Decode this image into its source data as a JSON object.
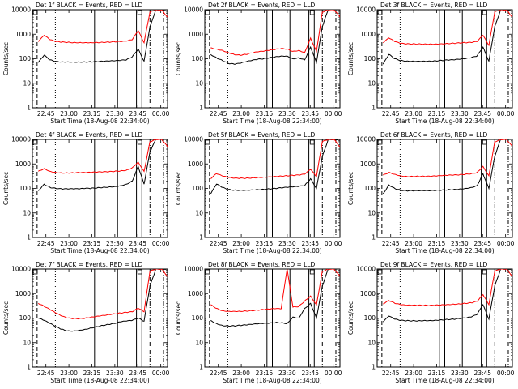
{
  "chart_data": [
    {
      "type": "line",
      "title": "Det 1f BLACK = Events, RED = LLD",
      "xlabel": "Start Time (18-Aug-08 22:34:00)",
      "ylabel": "Counts/sec",
      "x_ticks": [
        "22:45",
        "23:00",
        "23:15",
        "23:30",
        "23:45",
        "00:00"
      ],
      "y_ticks": [
        "1",
        "10",
        "100",
        "1000",
        "10000"
      ],
      "yscale": "log",
      "ylim": [
        1,
        10000
      ],
      "series": [
        {
          "color": "#000000",
          "values": [
            null,
            70,
            140,
            90,
            78,
            75,
            75,
            74,
            74,
            74,
            75,
            76,
            78,
            80,
            82,
            85,
            90,
            120,
            250,
            80,
            2000,
            10000,
            10000,
            10000
          ]
        },
        {
          "color": "#ff0000",
          "values": [
            null,
            500,
            900,
            600,
            500,
            480,
            470,
            460,
            460,
            460,
            460,
            465,
            470,
            480,
            490,
            500,
            520,
            600,
            1400,
            450,
            8000,
            10000,
            10000,
            5000
          ]
        }
      ]
    },
    {
      "type": "line",
      "title": "Det 2f BLACK = Events, RED = LLD",
      "xlabel": "Start Time (18-Aug-08 22:34:00)",
      "ylabel": "Counts/sec",
      "x_ticks": [
        "22:45",
        "23:00",
        "23:15",
        "23:30",
        "23:45",
        "00:00"
      ],
      "y_ticks": [
        "1",
        "10",
        "100",
        "1000",
        "10000"
      ],
      "yscale": "log",
      "ylim": [
        1,
        10000
      ],
      "series": [
        {
          "color": "#000000",
          "values": [
            null,
            150,
            110,
            85,
            65,
            60,
            65,
            75,
            85,
            95,
            100,
            110,
            120,
            130,
            130,
            100,
            110,
            90,
            300,
            70,
            2000,
            10000,
            10000,
            10000
          ]
        },
        {
          "color": "#ff0000",
          "values": [
            null,
            280,
            250,
            220,
            180,
            150,
            140,
            150,
            170,
            190,
            200,
            220,
            240,
            260,
            250,
            200,
            220,
            180,
            700,
            200,
            8000,
            10000,
            10000,
            5000
          ]
        }
      ]
    },
    {
      "type": "line",
      "title": "Det 3f BLACK = Events, RED = LLD",
      "xlabel": "Start Time (18-Aug-08 22:34:00)",
      "ylabel": "Counts/sec",
      "x_ticks": [
        "22:45",
        "23:00",
        "23:15",
        "23:30",
        "23:45",
        "00:00"
      ],
      "y_ticks": [
        "1",
        "10",
        "100",
        "1000",
        "10000"
      ],
      "yscale": "log",
      "ylim": [
        1,
        10000
      ],
      "series": [
        {
          "color": "#000000",
          "values": [
            null,
            60,
            150,
            100,
            85,
            80,
            80,
            80,
            80,
            80,
            82,
            85,
            88,
            90,
            95,
            100,
            110,
            130,
            300,
            80,
            2000,
            10000,
            10000,
            10000
          ]
        },
        {
          "color": "#ff0000",
          "values": [
            null,
            450,
            700,
            500,
            420,
            400,
            400,
            400,
            400,
            400,
            400,
            410,
            420,
            430,
            440,
            450,
            460,
            500,
            900,
            350,
            8000,
            10000,
            10000,
            5000
          ]
        }
      ]
    },
    {
      "type": "line",
      "title": "Det 4f BLACK = Events, RED = LLD",
      "xlabel": "Start Time (18-Aug-08 22:34:00)",
      "ylabel": "Counts/sec",
      "x_ticks": [
        "22:45",
        "23:00",
        "23:15",
        "23:30",
        "23:45",
        "00:00"
      ],
      "y_ticks": [
        "1",
        "10",
        "100",
        "1000",
        "10000"
      ],
      "yscale": "log",
      "ylim": [
        1,
        10000
      ],
      "series": [
        {
          "color": "#000000",
          "values": [
            null,
            80,
            150,
            110,
            100,
            95,
            95,
            95,
            95,
            100,
            100,
            105,
            110,
            115,
            120,
            130,
            150,
            200,
            800,
            150,
            3000,
            10000,
            10000,
            10000
          ]
        },
        {
          "color": "#ff0000",
          "values": [
            null,
            500,
            650,
            500,
            450,
            430,
            430,
            430,
            440,
            440,
            450,
            460,
            470,
            480,
            500,
            520,
            560,
            700,
            1200,
            500,
            8000,
            10000,
            10000,
            5000
          ]
        }
      ]
    },
    {
      "type": "line",
      "title": "Det 5f BLACK = Events, RED = LLD",
      "xlabel": "Start Time (18-Aug-08 22:34:00)",
      "ylabel": "Counts/sec",
      "x_ticks": [
        "22:45",
        "23:00",
        "23:15",
        "23:30",
        "23:45",
        "00:00"
      ],
      "y_ticks": [
        "1",
        "10",
        "100",
        "1000",
        "10000"
      ],
      "yscale": "log",
      "ylim": [
        1,
        10000
      ],
      "series": [
        {
          "color": "#000000",
          "values": [
            null,
            60,
            150,
            110,
            90,
            85,
            85,
            85,
            88,
            90,
            92,
            95,
            100,
            105,
            110,
            115,
            120,
            130,
            250,
            100,
            2000,
            10000,
            10000,
            10000
          ]
        },
        {
          "color": "#ff0000",
          "values": [
            null,
            250,
            400,
            320,
            280,
            260,
            260,
            260,
            270,
            280,
            290,
            300,
            310,
            320,
            330,
            340,
            350,
            380,
            600,
            300,
            8000,
            10000,
            10000,
            5000
          ]
        }
      ]
    },
    {
      "type": "line",
      "title": "Det 6f BLACK = Events, RED = LLD",
      "xlabel": "Start Time (18-Aug-08 22:34:00)",
      "ylabel": "Counts/sec",
      "x_ticks": [
        "22:45",
        "23:00",
        "23:15",
        "23:30",
        "23:45",
        "00:00"
      ],
      "y_ticks": [
        "1",
        "10",
        "100",
        "1000",
        "10000"
      ],
      "yscale": "log",
      "ylim": [
        1,
        10000
      ],
      "series": [
        {
          "color": "#000000",
          "values": [
            null,
            60,
            140,
            100,
            85,
            80,
            80,
            80,
            80,
            80,
            82,
            85,
            88,
            90,
            95,
            100,
            110,
            130,
            400,
            100,
            2000,
            10000,
            10000,
            10000
          ]
        },
        {
          "color": "#ff0000",
          "values": [
            null,
            350,
            450,
            380,
            330,
            310,
            310,
            310,
            310,
            310,
            320,
            330,
            340,
            350,
            360,
            380,
            400,
            450,
            800,
            330,
            8000,
            10000,
            10000,
            5000
          ]
        }
      ]
    },
    {
      "type": "line",
      "title": "Det 7f BLACK = Events, RED = LLD",
      "xlabel": "Start Time (18-Aug-08 22:34:00)",
      "ylabel": "Counts/sec",
      "x_ticks": [
        "22:45",
        "23:00",
        "23:15",
        "23:30",
        "23:45",
        "00:00"
      ],
      "y_ticks": [
        "1",
        "10",
        "100",
        "1000",
        "10000"
      ],
      "yscale": "log",
      "ylim": [
        1,
        10000
      ],
      "series": [
        {
          "color": "#000000",
          "values": [
            null,
            100,
            80,
            60,
            45,
            35,
            30,
            30,
            32,
            35,
            40,
            45,
            50,
            55,
            60,
            70,
            75,
            80,
            100,
            75,
            2000,
            10000,
            10000,
            10000
          ]
        },
        {
          "color": "#ff0000",
          "values": [
            null,
            400,
            300,
            220,
            160,
            120,
            100,
            95,
            95,
            100,
            110,
            120,
            130,
            140,
            150,
            160,
            170,
            180,
            250,
            180,
            8000,
            10000,
            10000,
            5000
          ]
        }
      ]
    },
    {
      "type": "line",
      "title": "Det 8f BLACK = Events, RED = LLD",
      "xlabel": "Start Time (18-Aug-08 22:34:00)",
      "ylabel": "Counts/sec",
      "x_ticks": [
        "22:45",
        "23:00",
        "23:15",
        "23:30",
        "23:45",
        "00:00"
      ],
      "y_ticks": [
        "1",
        "10",
        "100",
        "1000",
        "10000"
      ],
      "yscale": "log",
      "ylim": [
        1,
        10000
      ],
      "series": [
        {
          "color": "#000000",
          "values": [
            null,
            80,
            60,
            50,
            48,
            48,
            50,
            52,
            55,
            58,
            60,
            62,
            65,
            65,
            60,
            110,
            100,
            250,
            400,
            100,
            2000,
            10000,
            10000,
            10000
          ]
        },
        {
          "color": "#ff0000",
          "values": [
            null,
            350,
            250,
            200,
            190,
            190,
            190,
            195,
            200,
            210,
            220,
            230,
            240,
            240,
            10000,
            280,
            300,
            500,
            800,
            350,
            8000,
            10000,
            10000,
            5000
          ]
        }
      ]
    },
    {
      "type": "line",
      "title": "Det 9f BLACK = Events, RED = LLD",
      "xlabel": "Start Time (18-Aug-08 22:34:00)",
      "ylabel": "Counts/sec",
      "x_ticks": [
        "22:45",
        "23:00",
        "23:15",
        "23:30",
        "23:45",
        "00:00"
      ],
      "y_ticks": [
        "1",
        "10",
        "100",
        "1000",
        "10000"
      ],
      "yscale": "log",
      "ylim": [
        1,
        10000
      ],
      "series": [
        {
          "color": "#000000",
          "values": [
            null,
            70,
            120,
            90,
            80,
            78,
            78,
            78,
            80,
            80,
            82,
            85,
            88,
            90,
            95,
            100,
            110,
            140,
            350,
            90,
            2000,
            10000,
            10000,
            10000
          ]
        },
        {
          "color": "#ff0000",
          "values": [
            null,
            380,
            520,
            400,
            350,
            330,
            330,
            330,
            330,
            330,
            340,
            350,
            360,
            370,
            380,
            400,
            420,
            480,
            900,
            350,
            8000,
            10000,
            10000,
            5000
          ]
        }
      ]
    }
  ]
}
